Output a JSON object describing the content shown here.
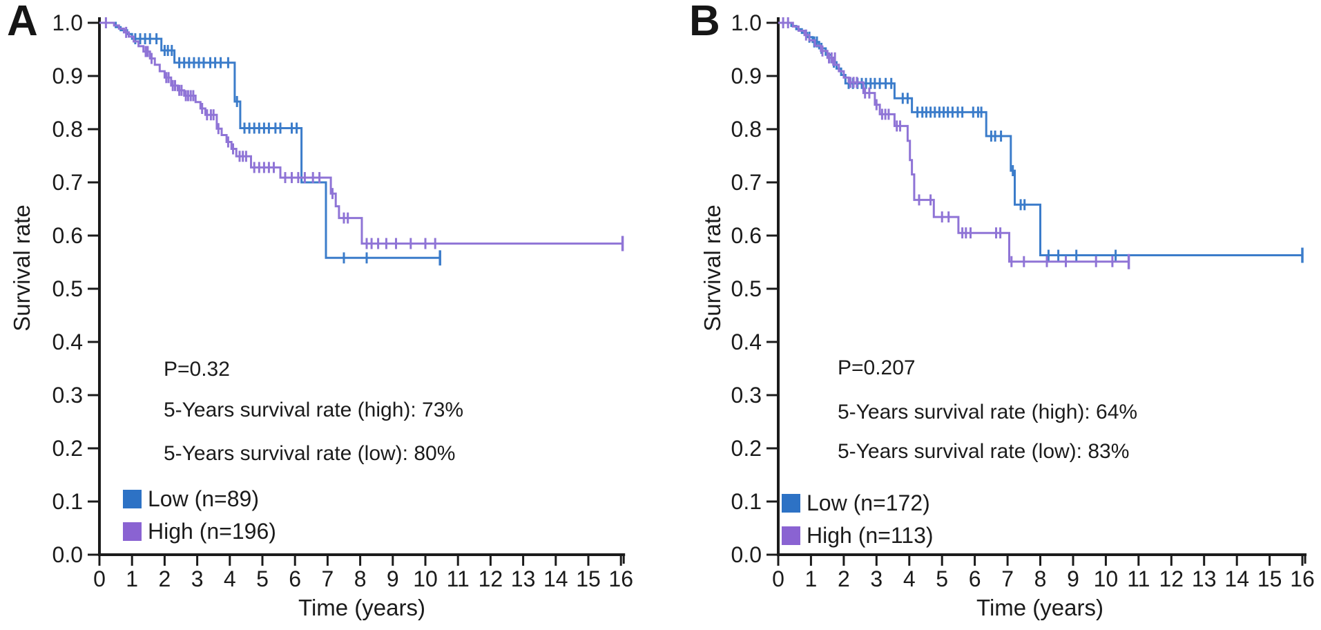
{
  "figure_name": "kaplan-meier-survival-figure",
  "chart_data": [
    {
      "type": "line",
      "subtype": "kaplan-meier-step",
      "panel_label": "A",
      "ylabel": "Survival rate",
      "xlabel": "Time (years)",
      "xlim": [
        0,
        16
      ],
      "ylim": [
        0.0,
        1.0
      ],
      "x_ticks": [
        "0",
        "1",
        "2",
        "3",
        "4",
        "5",
        "6",
        "7",
        "8",
        "9",
        "10",
        "11",
        "12",
        "13",
        "14",
        "15",
        "16"
      ],
      "y_ticks": [
        "0.0",
        "0.1",
        "0.2",
        "0.3",
        "0.4",
        "0.5",
        "0.6",
        "0.7",
        "0.8",
        "0.9",
        "1.0"
      ],
      "grid": false,
      "legend_position": "lower-left",
      "annotations": {
        "p_value": "P=0.32",
        "rate_high": "5-Years survival rate (high): 73%",
        "rate_low": "5-Years survival rate (low): 80%"
      },
      "legend": [
        {
          "label": "Low (n=89)",
          "color": "#2d72c5"
        },
        {
          "label": "High (n=196)",
          "color": "#8a63d2"
        }
      ],
      "series": [
        {
          "name": "Low",
          "color": "#3b7cca",
          "steps": [
            [
              0.5,
              0.992
            ],
            [
              0.65,
              0.986
            ],
            [
              0.85,
              0.979
            ],
            [
              1.0,
              0.97
            ],
            [
              1.9,
              0.948
            ],
            [
              2.3,
              0.925
            ],
            [
              4.15,
              0.852
            ],
            [
              4.32,
              0.802
            ],
            [
              6.2,
              0.7
            ],
            [
              6.95,
              0.558
            ]
          ],
          "end": 10.45,
          "censors": [
            [
              1.1,
              0.97
            ],
            [
              1.25,
              0.97
            ],
            [
              1.4,
              0.97
            ],
            [
              1.55,
              0.97
            ],
            [
              1.75,
              0.97
            ],
            [
              2.0,
              0.948
            ],
            [
              2.1,
              0.948
            ],
            [
              2.22,
              0.948
            ],
            [
              2.45,
              0.925
            ],
            [
              2.6,
              0.925
            ],
            [
              2.75,
              0.925
            ],
            [
              2.9,
              0.925
            ],
            [
              3.05,
              0.925
            ],
            [
              3.2,
              0.925
            ],
            [
              3.4,
              0.925
            ],
            [
              3.55,
              0.925
            ],
            [
              3.72,
              0.925
            ],
            [
              3.95,
              0.925
            ],
            [
              4.22,
              0.852
            ],
            [
              4.45,
              0.802
            ],
            [
              4.6,
              0.802
            ],
            [
              4.75,
              0.802
            ],
            [
              4.9,
              0.802
            ],
            [
              5.05,
              0.802
            ],
            [
              5.2,
              0.802
            ],
            [
              5.4,
              0.802
            ],
            [
              5.55,
              0.802
            ],
            [
              5.9,
              0.802
            ],
            [
              6.05,
              0.802
            ],
            [
              7.5,
              0.558
            ],
            [
              8.2,
              0.558
            ]
          ]
        },
        {
          "name": "High",
          "color": "#8f74d6",
          "steps": [
            [
              0.45,
              0.995
            ],
            [
              0.6,
              0.989
            ],
            [
              0.75,
              0.982
            ],
            [
              0.9,
              0.974
            ],
            [
              1.05,
              0.965
            ],
            [
              1.2,
              0.956
            ],
            [
              1.35,
              0.946
            ],
            [
              1.55,
              0.933
            ],
            [
              1.7,
              0.921
            ],
            [
              1.85,
              0.909
            ],
            [
              2.0,
              0.897
            ],
            [
              2.2,
              0.882
            ],
            [
              2.4,
              0.873
            ],
            [
              2.6,
              0.863
            ],
            [
              2.95,
              0.851
            ],
            [
              3.1,
              0.839
            ],
            [
              3.25,
              0.827
            ],
            [
              3.6,
              0.801
            ],
            [
              3.75,
              0.789
            ],
            [
              3.9,
              0.776
            ],
            [
              4.05,
              0.763
            ],
            [
              4.2,
              0.749
            ],
            [
              4.65,
              0.728
            ],
            [
              5.55,
              0.709
            ],
            [
              7.1,
              0.679
            ],
            [
              7.25,
              0.655
            ],
            [
              7.35,
              0.633
            ],
            [
              8.05,
              0.585
            ]
          ],
          "end": 16.05,
          "censors": [
            [
              0.2,
              1.0
            ],
            [
              0.82,
              0.982
            ],
            [
              1.42,
              0.946
            ],
            [
              1.48,
              0.946
            ],
            [
              1.6,
              0.933
            ],
            [
              2.05,
              0.897
            ],
            [
              2.12,
              0.897
            ],
            [
              2.25,
              0.882
            ],
            [
              2.32,
              0.882
            ],
            [
              2.45,
              0.873
            ],
            [
              2.52,
              0.873
            ],
            [
              2.65,
              0.863
            ],
            [
              2.72,
              0.863
            ],
            [
              2.8,
              0.863
            ],
            [
              2.88,
              0.863
            ],
            [
              3.15,
              0.839
            ],
            [
              3.3,
              0.827
            ],
            [
              3.42,
              0.827
            ],
            [
              3.5,
              0.827
            ],
            [
              3.65,
              0.801
            ],
            [
              3.95,
              0.776
            ],
            [
              4.1,
              0.763
            ],
            [
              4.3,
              0.749
            ],
            [
              4.4,
              0.749
            ],
            [
              4.5,
              0.749
            ],
            [
              4.75,
              0.728
            ],
            [
              4.9,
              0.728
            ],
            [
              5.05,
              0.728
            ],
            [
              5.2,
              0.728
            ],
            [
              5.35,
              0.728
            ],
            [
              5.7,
              0.709
            ],
            [
              5.9,
              0.709
            ],
            [
              6.1,
              0.709
            ],
            [
              6.3,
              0.709
            ],
            [
              6.55,
              0.709
            ],
            [
              6.75,
              0.709
            ],
            [
              7.15,
              0.679
            ],
            [
              7.5,
              0.633
            ],
            [
              7.62,
              0.633
            ],
            [
              8.2,
              0.585
            ],
            [
              8.35,
              0.585
            ],
            [
              8.55,
              0.585
            ],
            [
              8.8,
              0.585
            ],
            [
              9.1,
              0.585
            ],
            [
              9.55,
              0.585
            ],
            [
              10.0,
              0.585
            ],
            [
              10.3,
              0.585
            ]
          ]
        }
      ]
    },
    {
      "type": "line",
      "subtype": "kaplan-meier-step",
      "panel_label": "B",
      "ylabel": "Survival rate",
      "xlabel": "Time (years)",
      "xlim": [
        0,
        16
      ],
      "ylim": [
        0.0,
        1.0
      ],
      "x_ticks": [
        "0",
        "1",
        "2",
        "3",
        "4",
        "5",
        "6",
        "7",
        "8",
        "9",
        "10",
        "11",
        "12",
        "13",
        "14",
        "15",
        "16"
      ],
      "y_ticks": [
        "0.0",
        "0.1",
        "0.2",
        "0.3",
        "0.4",
        "0.5",
        "0.6",
        "0.7",
        "0.8",
        "0.9",
        "1.0"
      ],
      "grid": false,
      "legend_position": "lower-left",
      "annotations": {
        "p_value": "P=0.207",
        "rate_high": "5-Years survival rate (high): 64%",
        "rate_low": "5-Years survival rate (low): 83%"
      },
      "legend": [
        {
          "label": "Low (n=172)",
          "color": "#2d72c5"
        },
        {
          "label": "High (n=113)",
          "color": "#8a63d2"
        }
      ],
      "series": [
        {
          "name": "Low",
          "color": "#3b7cca",
          "steps": [
            [
              0.4,
              0.994
            ],
            [
              0.55,
              0.988
            ],
            [
              0.72,
              0.981
            ],
            [
              0.88,
              0.973
            ],
            [
              1.05,
              0.964
            ],
            [
              1.25,
              0.952
            ],
            [
              1.45,
              0.94
            ],
            [
              1.62,
              0.926
            ],
            [
              1.78,
              0.914
            ],
            [
              1.92,
              0.902
            ],
            [
              2.05,
              0.886
            ],
            [
              3.55,
              0.858
            ],
            [
              4.08,
              0.832
            ],
            [
              6.35,
              0.787
            ],
            [
              7.1,
              0.722
            ],
            [
              7.22,
              0.658
            ],
            [
              8.0,
              0.563
            ]
          ],
          "end": 16.0,
          "censors": [
            [
              0.95,
              0.973
            ],
            [
              1.1,
              0.964
            ],
            [
              1.18,
              0.964
            ],
            [
              1.32,
              0.952
            ],
            [
              1.7,
              0.926
            ],
            [
              2.15,
              0.886
            ],
            [
              2.28,
              0.886
            ],
            [
              2.42,
              0.886
            ],
            [
              2.55,
              0.886
            ],
            [
              2.68,
              0.886
            ],
            [
              2.82,
              0.886
            ],
            [
              2.95,
              0.886
            ],
            [
              3.1,
              0.886
            ],
            [
              3.28,
              0.886
            ],
            [
              3.45,
              0.886
            ],
            [
              3.8,
              0.858
            ],
            [
              3.95,
              0.858
            ],
            [
              4.25,
              0.832
            ],
            [
              4.4,
              0.832
            ],
            [
              4.52,
              0.832
            ],
            [
              4.65,
              0.832
            ],
            [
              4.78,
              0.832
            ],
            [
              4.92,
              0.832
            ],
            [
              5.05,
              0.832
            ],
            [
              5.18,
              0.832
            ],
            [
              5.32,
              0.832
            ],
            [
              5.48,
              0.832
            ],
            [
              5.62,
              0.832
            ],
            [
              5.95,
              0.832
            ],
            [
              6.1,
              0.832
            ],
            [
              6.2,
              0.832
            ],
            [
              6.5,
              0.787
            ],
            [
              6.62,
              0.787
            ],
            [
              6.8,
              0.787
            ],
            [
              7.16,
              0.722
            ],
            [
              7.4,
              0.658
            ],
            [
              7.52,
              0.658
            ],
            [
              8.25,
              0.563
            ],
            [
              8.55,
              0.563
            ],
            [
              9.1,
              0.563
            ],
            [
              10.3,
              0.563
            ]
          ]
        },
        {
          "name": "High",
          "color": "#8f74d6",
          "steps": [
            [
              0.45,
              0.993
            ],
            [
              0.62,
              0.985
            ],
            [
              0.8,
              0.977
            ],
            [
              0.95,
              0.967
            ],
            [
              1.12,
              0.957
            ],
            [
              1.3,
              0.947
            ],
            [
              1.5,
              0.934
            ],
            [
              1.68,
              0.921
            ],
            [
              1.85,
              0.909
            ],
            [
              2.0,
              0.897
            ],
            [
              2.15,
              0.888
            ],
            [
              2.6,
              0.868
            ],
            [
              2.95,
              0.846
            ],
            [
              3.1,
              0.828
            ],
            [
              3.55,
              0.806
            ],
            [
              3.95,
              0.778
            ],
            [
              4.02,
              0.742
            ],
            [
              4.08,
              0.715
            ],
            [
              4.15,
              0.667
            ],
            [
              4.75,
              0.635
            ],
            [
              5.5,
              0.605
            ],
            [
              7.05,
              0.551
            ]
          ],
          "end": 10.7,
          "censors": [
            [
              0.15,
              1.0
            ],
            [
              0.3,
              1.0
            ],
            [
              0.85,
              0.977
            ],
            [
              1.35,
              0.947
            ],
            [
              1.55,
              0.934
            ],
            [
              1.63,
              0.934
            ],
            [
              1.73,
              0.934
            ],
            [
              2.2,
              0.888
            ],
            [
              2.3,
              0.888
            ],
            [
              2.4,
              0.888
            ],
            [
              2.65,
              0.868
            ],
            [
              2.78,
              0.868
            ],
            [
              3.0,
              0.846
            ],
            [
              3.17,
              0.828
            ],
            [
              3.27,
              0.828
            ],
            [
              3.37,
              0.828
            ],
            [
              3.62,
              0.806
            ],
            [
              3.72,
              0.806
            ],
            [
              4.3,
              0.667
            ],
            [
              4.65,
              0.667
            ],
            [
              5.0,
              0.635
            ],
            [
              5.2,
              0.635
            ],
            [
              5.62,
              0.605
            ],
            [
              5.73,
              0.605
            ],
            [
              5.87,
              0.605
            ],
            [
              6.65,
              0.605
            ],
            [
              6.78,
              0.605
            ],
            [
              7.12,
              0.551
            ],
            [
              7.5,
              0.551
            ],
            [
              8.2,
              0.551
            ],
            [
              8.78,
              0.551
            ],
            [
              9.7,
              0.551
            ],
            [
              10.2,
              0.551
            ]
          ]
        }
      ]
    }
  ]
}
